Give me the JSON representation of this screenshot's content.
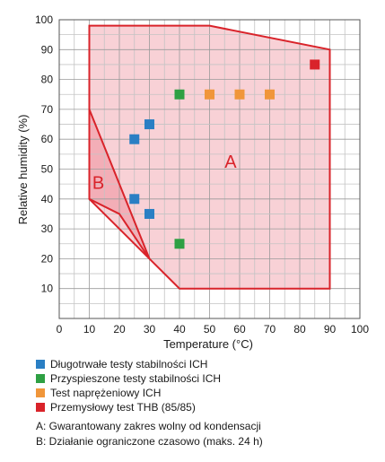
{
  "chart_data": {
    "type": "scatter",
    "xlabel": "Temperature (°C)",
    "ylabel": "Relative humidity (%)",
    "xlim": [
      0,
      100
    ],
    "ylim": [
      0,
      100
    ],
    "xticks": [
      0,
      10,
      20,
      30,
      40,
      50,
      60,
      70,
      80,
      90,
      100
    ],
    "yticks": [
      10,
      20,
      30,
      40,
      50,
      60,
      70,
      80,
      90,
      100
    ],
    "grid": true,
    "legend_position": "bottom",
    "series": [
      {
        "name": "Długotrwałe testy stabilności ICH",
        "color": "#2a7fc4",
        "points": [
          [
            25,
            60
          ],
          [
            30,
            65
          ],
          [
            25,
            40
          ],
          [
            30,
            35
          ]
        ]
      },
      {
        "name": "Przyspieszone testy stabilności ICH",
        "color": "#2ea043",
        "points": [
          [
            40,
            75
          ],
          [
            40,
            25
          ]
        ]
      },
      {
        "name": "Test naprężeniowy ICH",
        "color": "#f0963a",
        "points": [
          [
            50,
            75
          ],
          [
            60,
            75
          ],
          [
            70,
            75
          ]
        ]
      },
      {
        "name": "Przemysłowy test THB (85/85)",
        "color": "#d9232a",
        "points": [
          [
            85,
            85
          ]
        ]
      }
    ],
    "regions": [
      {
        "label": "A",
        "polygon": [
          [
            10,
            98
          ],
          [
            50,
            98
          ],
          [
            90,
            90
          ],
          [
            90,
            10
          ],
          [
            40,
            10
          ],
          [
            30,
            20
          ],
          [
            10,
            40
          ]
        ],
        "label_at": [
          57,
          52
        ],
        "edge_color": "#d9232a",
        "fill_color": "#f7c9cf"
      },
      {
        "label": "B",
        "polygon": [
          [
            10,
            70
          ],
          [
            10,
            40
          ],
          [
            20,
            35
          ],
          [
            30,
            20
          ]
        ],
        "label_at": [
          13,
          45
        ],
        "edge_color": "#d9232a",
        "fill_color": "#f2a8b2"
      }
    ],
    "notes": [
      "A: Gwarantowany zakres wolny od kondensacji",
      "B: Działanie ograniczone czasowo (maks. 24 h)"
    ]
  }
}
